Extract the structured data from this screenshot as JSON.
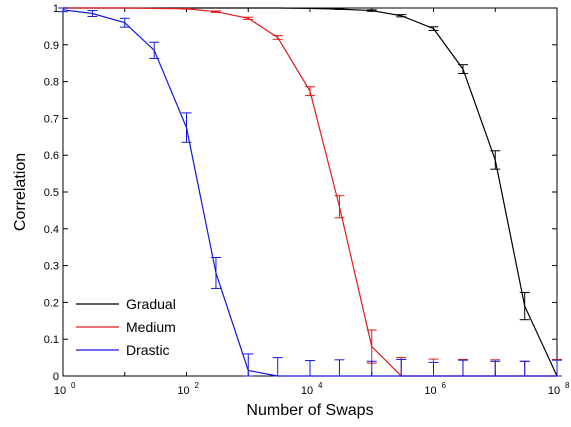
{
  "chart_data": {
    "type": "line",
    "title": "",
    "xlabel": "Number of Swaps",
    "ylabel": "Correlation",
    "xscale": "log",
    "xlim": [
      1,
      100000000
    ],
    "ylim": [
      0,
      1
    ],
    "x_ticks": [
      {
        "value": 1,
        "mantissa": "10",
        "exp": "0"
      },
      {
        "value": 100,
        "mantissa": "10",
        "exp": "2"
      },
      {
        "value": 10000,
        "mantissa": "10",
        "exp": "4"
      },
      {
        "value": 1000000,
        "mantissa": "10",
        "exp": "6"
      },
      {
        "value": 100000000,
        "mantissa": "10",
        "exp": "8"
      }
    ],
    "y_ticks": [
      0,
      0.1,
      0.2,
      0.3,
      0.4,
      0.5,
      0.6,
      0.7,
      0.8,
      0.9,
      1
    ],
    "y_tick_labels": [
      "0",
      "0.1",
      "0.2",
      "0.3",
      "0.4",
      "0.5",
      "0.6",
      "0.7",
      "0.8",
      "0.9",
      "1"
    ],
    "grid": false,
    "legend_position": "bottom-left",
    "series": [
      {
        "name": "Gradual",
        "color": "#000000",
        "x": [
          1,
          3,
          10,
          30,
          100,
          300,
          1000,
          3000,
          10000,
          30000,
          100000,
          300000,
          1000000,
          3000000,
          10000000,
          30000000,
          100000000
        ],
        "y": [
          1.0,
          1.0,
          1.0,
          1.0,
          1.0,
          1.0,
          1.0,
          1.0,
          0.999,
          0.997,
          0.993,
          0.979,
          0.944,
          0.834,
          0.587,
          0.19,
          0.0
        ],
        "err": [
          0,
          0,
          0,
          0,
          0,
          0,
          0,
          0,
          0,
          0.001,
          0.002,
          0.003,
          0.005,
          0.012,
          0.025,
          0.037,
          0.0
        ]
      },
      {
        "name": "Medium",
        "color": "#e31a1a",
        "x": [
          1,
          3,
          10,
          30,
          100,
          300,
          1000,
          3000,
          10000,
          30000,
          100000,
          300000,
          1000000,
          3000000,
          10000000,
          30000000,
          100000000
        ],
        "y": [
          1.0,
          1.0,
          1.0,
          0.999,
          0.998,
          0.99,
          0.972,
          0.92,
          0.774,
          0.46,
          0.08,
          0.0,
          0.0,
          0.0,
          0.0,
          0.0,
          0.0
        ],
        "err": [
          0,
          0,
          0,
          0,
          0.001,
          0.002,
          0.003,
          0.005,
          0.012,
          0.03,
          0.045,
          0.05,
          0.046,
          0.045,
          0.044,
          0.04,
          0.045
        ]
      },
      {
        "name": "Drastic",
        "color": "#1515e0",
        "x": [
          1,
          3,
          10,
          30,
          100,
          300,
          1000,
          3000,
          10000,
          30000,
          100000,
          300000,
          1000000,
          3000000,
          10000000,
          30000000,
          100000000
        ],
        "y": [
          0.995,
          0.985,
          0.96,
          0.885,
          0.675,
          0.28,
          0.015,
          0.0,
          0.0,
          0.0,
          0.0,
          0.0,
          0.0,
          0.0,
          0.0,
          0.0,
          0.0
        ],
        "err": [
          0.005,
          0.008,
          0.012,
          0.022,
          0.04,
          0.042,
          0.045,
          0.05,
          0.042,
          0.044,
          0.04,
          0.045,
          0.037,
          0.043,
          0.04,
          0.04,
          0.043
        ]
      }
    ]
  }
}
